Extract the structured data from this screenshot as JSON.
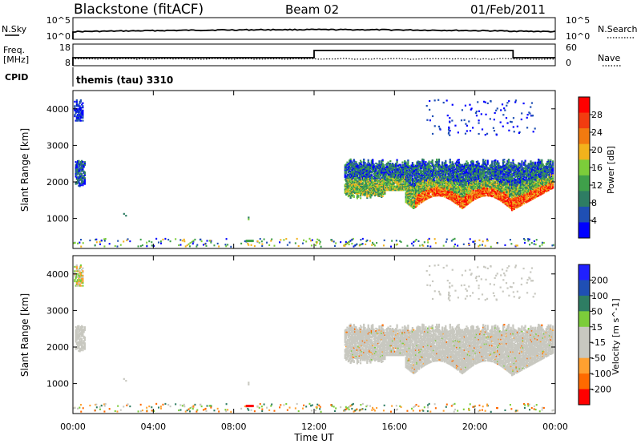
{
  "header": {
    "station": "Blackstone (fitACF)",
    "beam": "Beam 02",
    "date": "01/Feb/2011"
  },
  "top_panels": {
    "nsky_label": "N.Sky",
    "nsearch_label": "N.Search",
    "freq_label_line1": "Freq.",
    "freq_label_line2": "[MHz]",
    "nave_label": "Nave",
    "cpid_label": "CPID",
    "cpid_text": "themis (tau) 3310",
    "nsky_ticks": [
      "10^5",
      "10^0"
    ],
    "nsearch_ticks": [
      "10^5",
      "10^0"
    ],
    "freq_ticks": [
      "18",
      "8"
    ],
    "nave_ticks": [
      "60",
      "0"
    ]
  },
  "colors": {
    "power": [
      "#0000ff",
      "#1f4fb4",
      "#2e7d63",
      "#3fa04a",
      "#7ccd3a",
      "#f2b21c",
      "#f27a10",
      "#f23c10",
      "#ff0000"
    ],
    "velocity": [
      "#ff0000",
      "#ff6a00",
      "#ffa030",
      "#c8c8c0",
      "#c8c8c0",
      "#7ccd3a",
      "#2e7d63",
      "#1f4fb4",
      "#2020ff"
    ],
    "gray": "#c8c8c0"
  },
  "chart_data": [
    {
      "type": "heatmap",
      "title": "Power",
      "ylabel": "Slant Range [km]",
      "xlabel": "Time UT",
      "xlim": [
        0,
        24
      ],
      "ylim": [
        180,
        4500
      ],
      "x_ticks": [
        "00:00",
        "04:00",
        "08:00",
        "12:00",
        "16:00",
        "20:00",
        "00:00"
      ],
      "y_ticks": [
        1000,
        2000,
        3000,
        4000
      ],
      "colorbar": {
        "label": "Power [dB]",
        "ticks": [
          "28",
          "24",
          "20",
          "16",
          "12",
          "8",
          "4"
        ]
      },
      "regions": [
        {
          "name": "F-region band",
          "t_start": 13.5,
          "t_end": 23.8,
          "range_low_km": 1200,
          "range_high_km": 2600,
          "power_db_max": 28
        },
        {
          "name": "Early scatter",
          "t_start": 0.1,
          "t_end": 0.6,
          "range_low_km": 1900,
          "range_high_km": 2600,
          "power_db_max": 8
        },
        {
          "name": "Early high range",
          "t_start": 0.0,
          "t_end": 0.5,
          "range_low_km": 3700,
          "range_high_km": 4300,
          "power_db_max": 6
        },
        {
          "name": "Ground scatter",
          "t_start": 0.0,
          "t_end": 24,
          "range_low_km": 250,
          "range_high_km": 450,
          "power_db_max": 10
        }
      ]
    },
    {
      "type": "heatmap",
      "title": "Velocity",
      "ylabel": "Slant Range [km]",
      "xlabel": "Time UT",
      "xlim": [
        0,
        24
      ],
      "ylim": [
        180,
        4500
      ],
      "x_ticks": [
        "00:00",
        "04:00",
        "08:00",
        "12:00",
        "16:00",
        "20:00",
        "00:00"
      ],
      "y_ticks": [
        1000,
        2000,
        3000,
        4000
      ],
      "colorbar": {
        "label": "Velocity [m s^-1]",
        "ticks": [
          "200",
          "100",
          "50",
          "15",
          "-15",
          "-50",
          "-100",
          "-200"
        ]
      },
      "regions": [
        {
          "name": "F-region band",
          "t_start": 13.5,
          "t_end": 23.8,
          "range_low_km": 1200,
          "range_high_km": 2600,
          "velocity_mps": 0
        },
        {
          "name": "Sporadic red",
          "t_start": 8.6,
          "t_end": 8.9,
          "range_low_km": 380,
          "range_high_km": 460,
          "velocity_mps": -220
        }
      ]
    }
  ]
}
